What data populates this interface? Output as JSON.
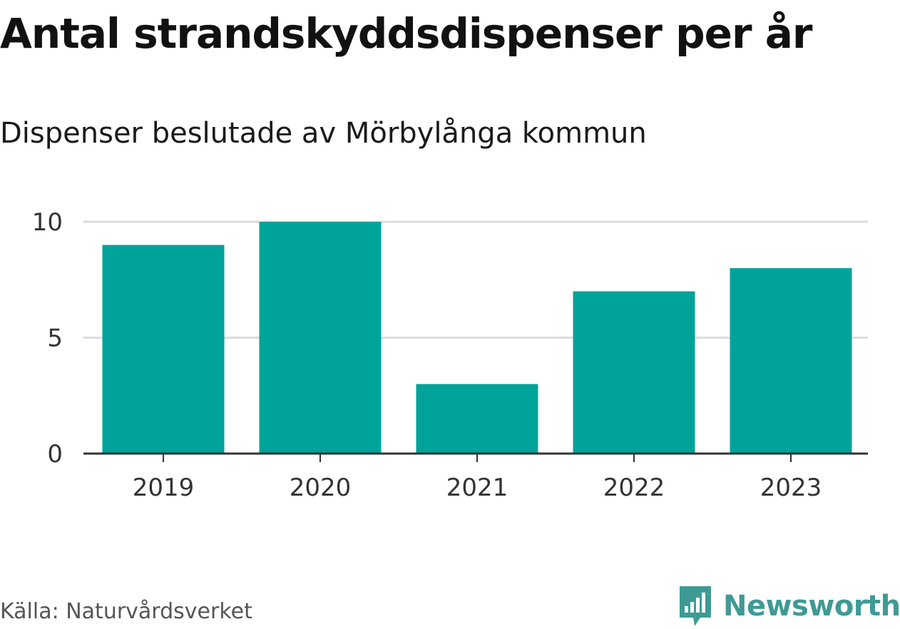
{
  "chart_data": {
    "type": "bar",
    "title": "Antal strandskyddsdispenser per år",
    "subtitle": "Dispenser beslutade av Mörbylånga kommun",
    "categories": [
      "2019",
      "2020",
      "2021",
      "2022",
      "2023"
    ],
    "values": [
      9,
      10,
      3,
      7,
      8
    ],
    "ylim": [
      0,
      10
    ],
    "yticks": [
      "0",
      "5",
      "10"
    ],
    "grid": true,
    "bar_color": "#00a39a",
    "source": "Källa: Naturvårdsverket"
  },
  "brand": {
    "name": "Newsworthy",
    "icon": "newsworthy-logo-icon",
    "color": "#3f9a95"
  }
}
